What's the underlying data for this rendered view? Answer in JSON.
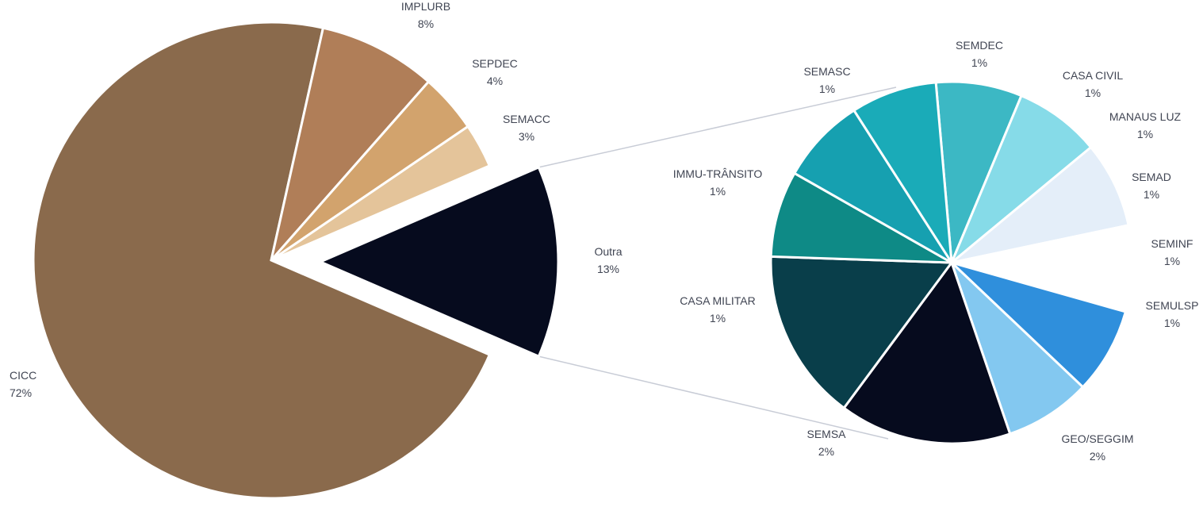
{
  "chart_data": {
    "type": "pie",
    "subtype": "pie-of-pie",
    "main_pie": {
      "slices": [
        {
          "name": "CICC",
          "value": 72,
          "label": "72%",
          "color": "#8a6a4c"
        },
        {
          "name": "IMPLURB",
          "value": 8,
          "label": "8%",
          "color": "#b07e58"
        },
        {
          "name": "SEPDEC",
          "value": 4,
          "label": "4%",
          "color": "#d2a36d"
        },
        {
          "name": "SEMACC",
          "value": 3,
          "label": "3%",
          "color": "#e4c49a"
        },
        {
          "name": "Outra",
          "value": 13,
          "label": "13%",
          "color": "#060b1e"
        }
      ]
    },
    "secondary_pie": {
      "slices": [
        {
          "name": "SEMDEC",
          "value": 1,
          "label": "1%",
          "color": "#3cb8c4"
        },
        {
          "name": "CASA CIVIL",
          "value": 1,
          "label": "1%",
          "color": "#86dbe8"
        },
        {
          "name": "MANAUS LUZ",
          "value": 1,
          "label": "1%",
          "color": "#e4eef9"
        },
        {
          "name": "SEMAD",
          "value": 1,
          "label": "1%",
          "color": "#ffffff"
        },
        {
          "name": "SEMINF",
          "value": 1,
          "label": "1%",
          "color": "#2f8fdc"
        },
        {
          "name": "SEMULSP",
          "value": 1,
          "label": "1%",
          "color": "#83c8f0"
        },
        {
          "name": "GEO/SEGGIM",
          "value": 2,
          "label": "2%",
          "color": "#060b1e"
        },
        {
          "name": "SEMSA",
          "value": 2,
          "label": "2%",
          "color": "#093e4a"
        },
        {
          "name": "CASA MILITAR",
          "value": 1,
          "label": "1%",
          "color": "#0e8a86"
        },
        {
          "name": "IMMU-TRÂNSITO",
          "value": 1,
          "label": "1%",
          "color": "#16a0b0"
        },
        {
          "name": "SEMASC",
          "value": 1,
          "label": "1%",
          "color": "#1aabb8"
        }
      ]
    }
  }
}
